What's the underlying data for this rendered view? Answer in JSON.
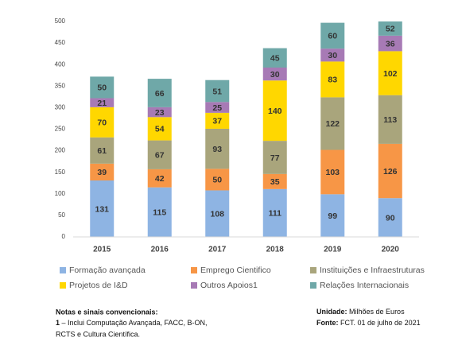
{
  "chart_data": {
    "type": "stacked_bar",
    "categories": [
      "2015",
      "2016",
      "2017",
      "2018",
      "2019",
      "2020"
    ],
    "series": [
      {
        "name": "Formação avançada",
        "color": "#8eb4e3",
        "values": [
          131,
          115,
          108,
          111,
          99,
          90
        ]
      },
      {
        "name": "Emprego Cientifico",
        "color": "#f79646",
        "values": [
          39,
          42,
          50,
          35,
          103,
          126
        ]
      },
      {
        "name": "Instituições e Infraestruturas",
        "color": "#a9a57c",
        "values": [
          61,
          67,
          93,
          77,
          122,
          113
        ]
      },
      {
        "name": "Projetos de I&D",
        "color": "#ffd700",
        "values": [
          70,
          54,
          37,
          140,
          83,
          102
        ]
      },
      {
        "name": "Outros Apoios1",
        "color": "#a77ab5",
        "values": [
          21,
          23,
          25,
          30,
          30,
          36
        ]
      },
      {
        "name": "Relações Internacionais",
        "color": "#6fa8a8",
        "values": [
          50,
          66,
          51,
          45,
          60,
          52
        ]
      }
    ],
    "ylim": [
      0,
      500
    ],
    "yticks": [
      0,
      50,
      100,
      150,
      200,
      250,
      300,
      350,
      400,
      450,
      500
    ],
    "grid": false,
    "legend": "bottom"
  },
  "notes": {
    "title": "Notas e sinais convencionais:",
    "marker": "1",
    "text": "– Inclui Computação Avançada, FACC, B-ON,",
    "text2": "RCTS e Cultura Científica."
  },
  "unit": {
    "label": "Unidade:",
    "text": "Milhões de Euros"
  },
  "source": {
    "label": "Fonte:",
    "text": "FCT. 01 de julho de 2021"
  }
}
